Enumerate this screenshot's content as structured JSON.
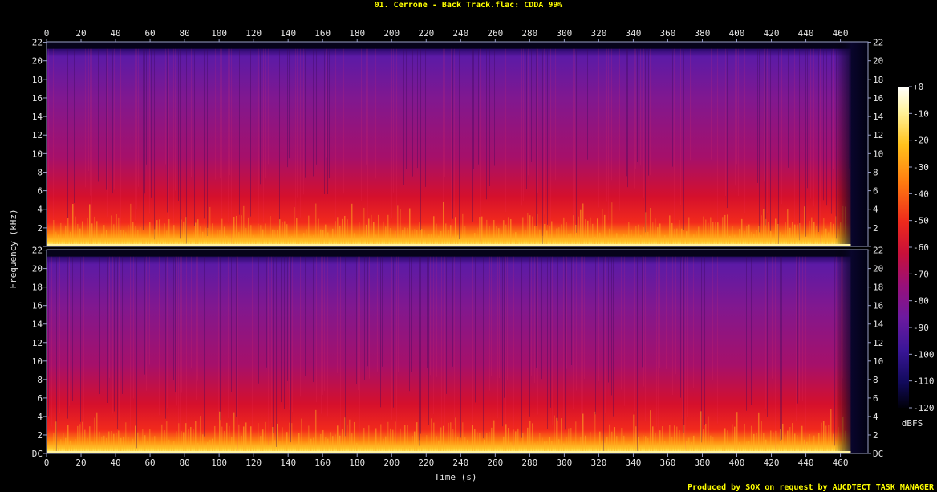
{
  "chart_data": {
    "type": "heatmap",
    "title": "01. Cerrone - Back Track.flac: CDDA 99%",
    "xlabel": "Time (s)",
    "ylabel": "Frequency (kHz)",
    "xlim": [
      0,
      476
    ],
    "x_ticks": [
      0,
      20,
      40,
      60,
      80,
      100,
      120,
      140,
      160,
      180,
      200,
      220,
      240,
      260,
      280,
      300,
      320,
      340,
      360,
      380,
      400,
      420,
      440,
      460
    ],
    "ylim_khz": [
      0,
      22.05
    ],
    "y_ticks": [
      {
        "value": 0,
        "label": "DC"
      },
      {
        "value": 2,
        "label": "2"
      },
      {
        "value": 4,
        "label": "4"
      },
      {
        "value": 6,
        "label": "6"
      },
      {
        "value": 8,
        "label": "8"
      },
      {
        "value": 10,
        "label": "10"
      },
      {
        "value": 12,
        "label": "12"
      },
      {
        "value": 14,
        "label": "14"
      },
      {
        "value": 16,
        "label": "16"
      },
      {
        "value": 18,
        "label": "18"
      },
      {
        "value": 20,
        "label": "20"
      },
      {
        "value": 22,
        "label": "22"
      }
    ],
    "channels": 2,
    "colorbar": {
      "unit": "dBFS",
      "range": [
        -120,
        0
      ],
      "ticks": [
        "+0",
        "-10",
        "-20",
        "-30",
        "-40",
        "-50",
        "-60",
        "-70",
        "-80",
        "-90",
        "-100",
        "-110",
        "-120"
      ]
    },
    "audio_end_s": 466,
    "band_cutoff_khz": 21.3
  },
  "footer": {
    "credit": "Produced by SOX on request by AUCDTECT TASK MANAGER"
  },
  "colors": {
    "title": "#ffff00",
    "axis": "#9aa0c8",
    "text": "#e6e6e6",
    "background": "#000000"
  }
}
